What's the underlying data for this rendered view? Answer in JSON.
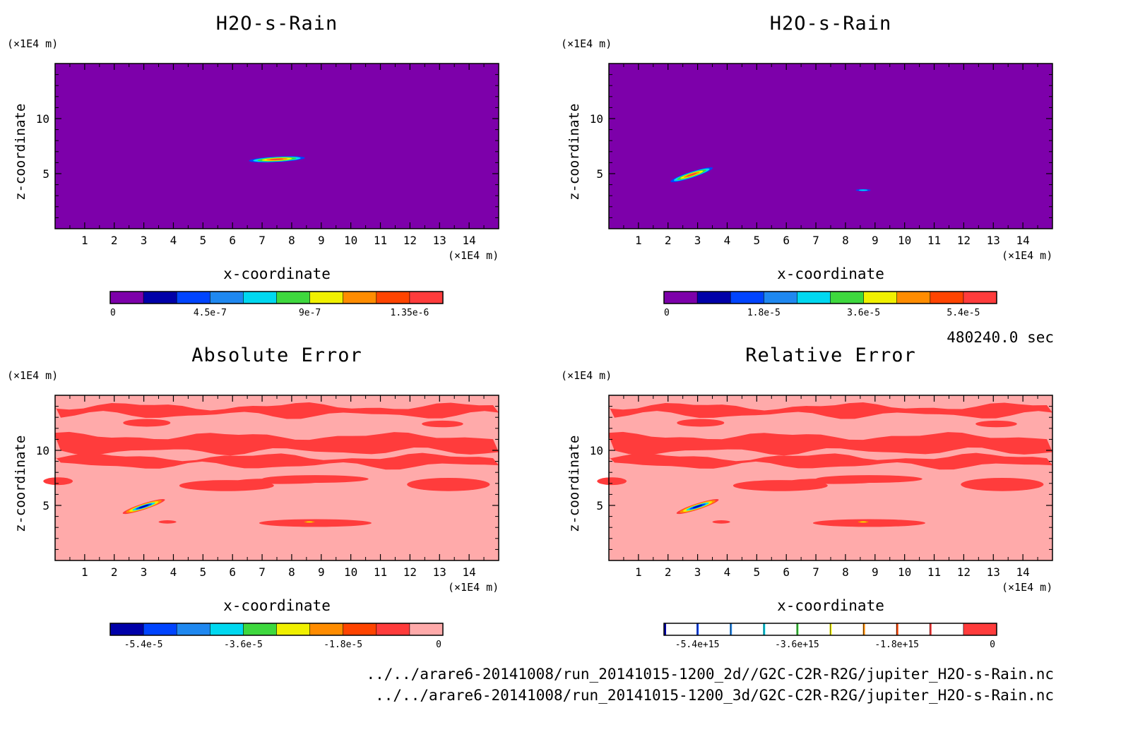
{
  "colors": {
    "purple": "#7d00aa",
    "navy": "#0000a8",
    "blue": "#0044ff",
    "mid_blue": "#1f88f0",
    "cyan": "#00d8f0",
    "green": "#3ed83e",
    "yellow": "#f0f000",
    "orange": "#ff8c00",
    "red_orange": "#ff4400",
    "red": "#ff3c3c",
    "pink": "#ffaaaa"
  },
  "timestamp": "480240.0 sec",
  "files": [
    "../../arare6-20141008/run_20141015-1200_2d//G2C-C2R-R2G/jupiter_H2O-s-Rain.nc",
    "../../arare6-20141008/run_20141015-1200_3d/G2C-C2R-R2G/jupiter_H2O-s-Rain.nc"
  ],
  "chart_data": [
    {
      "type": "heatmap",
      "title": "H2O-s-Rain",
      "xlabel": "x-coordinate",
      "ylabel": "z-coordinate",
      "x_unit": "(×1E4 m)",
      "y_unit": "(×1E4 m)",
      "xlim": [
        0,
        15
      ],
      "ylim": [
        0,
        15
      ],
      "x_ticks": [
        "1",
        "2",
        "3",
        "4",
        "5",
        "6",
        "7",
        "8",
        "9",
        "10",
        "11",
        "12",
        "13",
        "14"
      ],
      "y_ticks": [
        "5",
        "10"
      ],
      "background": "purple",
      "features": [
        {
          "kind": "blob",
          "cx": 7.5,
          "cy": 6.3,
          "rx": 0.95,
          "ry": 0.25,
          "rot": -3,
          "peak": "red"
        }
      ],
      "colorbar": {
        "labels": [
          "0",
          "4.5e-7",
          "9e-7",
          "1.35e-6"
        ],
        "colors": [
          "purple",
          "navy",
          "blue",
          "mid_blue",
          "cyan",
          "green",
          "yellow",
          "orange",
          "red_orange",
          "red"
        ]
      }
    },
    {
      "type": "heatmap",
      "title": "H2O-s-Rain",
      "xlabel": "x-coordinate",
      "ylabel": "z-coordinate",
      "x_unit": "(×1E4 m)",
      "y_unit": "(×1E4 m)",
      "xlim": [
        0,
        15
      ],
      "ylim": [
        0,
        15
      ],
      "x_ticks": [
        "1",
        "2",
        "3",
        "4",
        "5",
        "6",
        "7",
        "8",
        "9",
        "10",
        "11",
        "12",
        "13",
        "14"
      ],
      "y_ticks": [
        "5",
        "10"
      ],
      "background": "purple",
      "features": [
        {
          "kind": "blob",
          "cx": 2.8,
          "cy": 4.9,
          "rx": 0.75,
          "ry": 0.28,
          "rot": -18,
          "peak": "red"
        },
        {
          "kind": "blob",
          "cx": 8.6,
          "cy": 3.5,
          "rx": 0.25,
          "ry": 0.1,
          "rot": 0,
          "peak": "cyan"
        }
      ],
      "colorbar": {
        "labels": [
          "0",
          "1.8e-5",
          "3.6e-5",
          "5.4e-5"
        ],
        "colors": [
          "purple",
          "navy",
          "blue",
          "mid_blue",
          "cyan",
          "green",
          "yellow",
          "orange",
          "red_orange",
          "red"
        ]
      }
    },
    {
      "type": "heatmap",
      "title": "Absolute Error",
      "xlabel": "x-coordinate",
      "ylabel": "z-coordinate",
      "x_unit": "(×1E4 m)",
      "y_unit": "(×1E4 m)",
      "xlim": [
        0,
        15
      ],
      "ylim": [
        0,
        15
      ],
      "x_ticks": [
        "1",
        "2",
        "3",
        "4",
        "5",
        "6",
        "7",
        "8",
        "9",
        "10",
        "11",
        "12",
        "13",
        "14"
      ],
      "y_ticks": [
        "5",
        "10"
      ],
      "background": "pink",
      "bands_z": [
        [
          13.2,
          14.0
        ],
        [
          9.9,
          11.3
        ],
        [
          8.6,
          9.4
        ]
      ],
      "features": [
        {
          "kind": "blob",
          "cx": 3.0,
          "cy": 4.9,
          "rx": 0.75,
          "ry": 0.28,
          "rot": -18,
          "peak": "navy"
        },
        {
          "kind": "blob",
          "cx": 8.6,
          "cy": 3.5,
          "rx": 0.25,
          "ry": 0.1,
          "rot": 0,
          "peak": "yellow"
        }
      ],
      "colorbar": {
        "labels": [
          "-5.4e-5",
          "-3.6e-5",
          "-1.8e-5",
          "0"
        ],
        "colors": [
          "navy",
          "blue",
          "mid_blue",
          "cyan",
          "green",
          "yellow",
          "orange",
          "red_orange",
          "red",
          "pink"
        ]
      }
    },
    {
      "type": "heatmap",
      "title": "Relative Error",
      "xlabel": "x-coordinate",
      "ylabel": "z-coordinate",
      "x_unit": "(×1E4 m)",
      "y_unit": "(×1E4 m)",
      "xlim": [
        0,
        15
      ],
      "ylim": [
        0,
        15
      ],
      "x_ticks": [
        "1",
        "2",
        "3",
        "4",
        "5",
        "6",
        "7",
        "8",
        "9",
        "10",
        "11",
        "12",
        "13",
        "14"
      ],
      "y_ticks": [
        "5",
        "10"
      ],
      "background": "pink",
      "bands_z": [
        [
          13.2,
          14.0
        ],
        [
          9.9,
          11.3
        ],
        [
          8.6,
          9.4
        ]
      ],
      "features": [
        {
          "kind": "blob",
          "cx": 3.0,
          "cy": 4.9,
          "rx": 0.75,
          "ry": 0.28,
          "rot": -18,
          "peak": "navy"
        },
        {
          "kind": "blob",
          "cx": 8.6,
          "cy": 3.5,
          "rx": 0.25,
          "ry": 0.1,
          "rot": 0,
          "peak": "yellow"
        }
      ],
      "colorbar": {
        "labels": [
          "-5.4e+15",
          "-3.6e+15",
          "-1.8e+15",
          "0"
        ],
        "style": "lines",
        "colors": [
          "navy",
          "blue",
          "mid_blue",
          "cyan",
          "green",
          "yellow",
          "orange",
          "red_orange",
          "red",
          "red"
        ]
      }
    }
  ]
}
